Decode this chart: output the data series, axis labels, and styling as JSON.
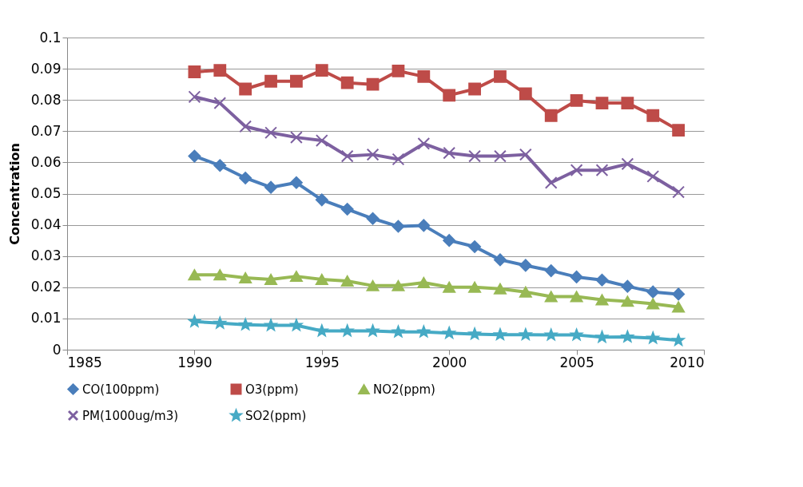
{
  "chart_data": {
    "type": "line",
    "ylabel": "Concentration",
    "x": [
      1990,
      1991,
      1992,
      1993,
      1994,
      1995,
      1996,
      1997,
      1998,
      1999,
      2000,
      2001,
      2002,
      2003,
      2004,
      2005,
      2006,
      2007,
      2008,
      2009
    ],
    "xlim": [
      1985,
      2010
    ],
    "xticks": [
      1985,
      1990,
      1995,
      2000,
      2005,
      2010
    ],
    "ylim": [
      0,
      0.1
    ],
    "yticks": [
      0,
      0.01,
      0.02,
      0.03,
      0.04,
      0.05,
      0.06,
      0.07,
      0.08,
      0.09,
      0.1
    ],
    "grid": "y",
    "legend": "bottom",
    "series": [
      {
        "name": "CO(100ppm)",
        "color": "#4a7ebb",
        "marker": "diamond",
        "values": [
          0.062,
          0.059,
          0.055,
          0.052,
          0.0535,
          0.048,
          0.045,
          0.042,
          0.0395,
          0.0398,
          0.035,
          0.033,
          0.0288,
          0.027,
          0.0253,
          0.0233,
          0.0223,
          0.0203,
          0.0185,
          0.0178
        ]
      },
      {
        "name": "O3(ppm)",
        "color": "#be4b48",
        "marker": "square",
        "values": [
          0.089,
          0.0895,
          0.0835,
          0.086,
          0.086,
          0.0895,
          0.0855,
          0.085,
          0.0893,
          0.0875,
          0.0815,
          0.0835,
          0.0875,
          0.082,
          0.075,
          0.0798,
          0.079,
          0.079,
          0.075,
          0.0703
        ]
      },
      {
        "name": "NO2(ppm)",
        "color": "#98b954",
        "marker": "triangle",
        "values": [
          0.024,
          0.024,
          0.023,
          0.0225,
          0.0235,
          0.0225,
          0.022,
          0.0205,
          0.0205,
          0.0215,
          0.02,
          0.02,
          0.0195,
          0.0185,
          0.017,
          0.017,
          0.016,
          0.0155,
          0.0147,
          0.0137
        ]
      },
      {
        "name": "PM(1000ug/m3)",
        "color": "#7d60a0",
        "marker": "cross",
        "values": [
          0.081,
          0.079,
          0.0715,
          0.0695,
          0.068,
          0.067,
          0.062,
          0.0625,
          0.061,
          0.066,
          0.063,
          0.062,
          0.062,
          0.0625,
          0.0535,
          0.0575,
          0.0575,
          0.0595,
          0.0555,
          0.0505
        ]
      },
      {
        "name": "SO2(ppm)",
        "color": "#46aac5",
        "marker": "star",
        "values": [
          0.009,
          0.0085,
          0.008,
          0.0078,
          0.0078,
          0.006,
          0.006,
          0.006,
          0.0057,
          0.0057,
          0.0053,
          0.005,
          0.0048,
          0.0048,
          0.0047,
          0.0047,
          0.004,
          0.0041,
          0.0037,
          0.003
        ]
      }
    ]
  }
}
